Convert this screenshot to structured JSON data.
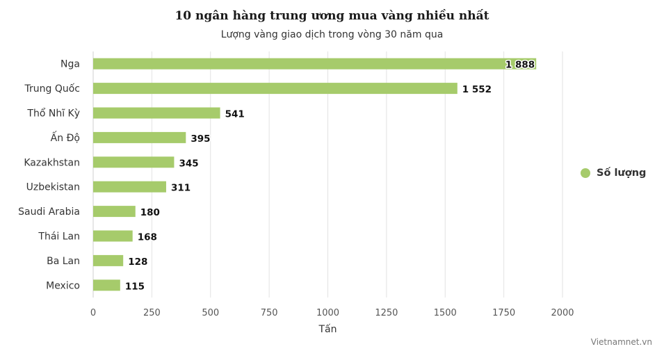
{
  "chart_data": {
    "type": "bar",
    "orientation": "horizontal",
    "title": "10 ngân hàng trung ương mua vàng nhiều nhất",
    "subtitle": "Lượng vàng giao dịch trong vòng 30 năm qua",
    "categories": [
      "Nga",
      "Trung Quốc",
      "Thổ Nhĩ Kỳ",
      "Ấn Độ",
      "Kazakhstan",
      "Uzbekistan",
      "Saudi Arabia",
      "Thái Lan",
      "Ba Lan",
      "Mexico"
    ],
    "series": [
      {
        "name": "Số lượng",
        "values": [
          1888,
          1552,
          541,
          395,
          345,
          311,
          180,
          168,
          128,
          115
        ],
        "labels": [
          "1 888",
          "1 552",
          "541",
          "395",
          "345",
          "311",
          "180",
          "168",
          "128",
          "115"
        ],
        "color": "#a6cb6b"
      }
    ],
    "xlabel": "Tấn",
    "ylabel": "",
    "xlim": [
      0,
      2000
    ],
    "x_ticks": [
      0,
      250,
      500,
      750,
      1000,
      1250,
      1500,
      1750,
      2000
    ],
    "grid": "vertical",
    "legend_position": "right"
  },
  "credit": "Vietnamnet.vn"
}
